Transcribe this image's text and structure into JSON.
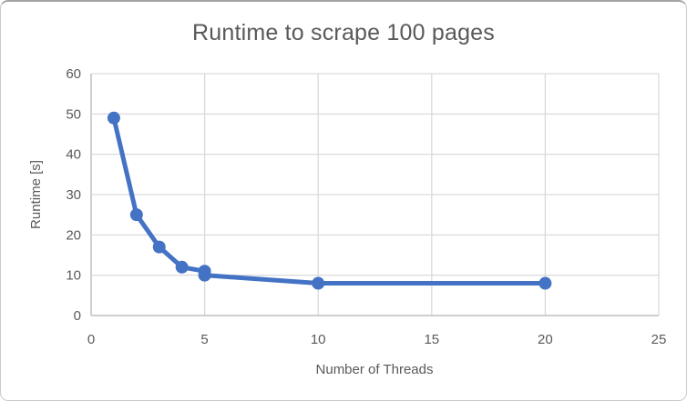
{
  "window": {
    "background": "#ffffff",
    "border_color": "#c9c9c9",
    "top_edge_color": "#a3a3a3"
  },
  "chart_data": {
    "type": "line",
    "title": "Runtime to scrape 100 pages",
    "xlabel": "Number of Threads",
    "ylabel": "Runtime [s]",
    "x": [
      1,
      2,
      3,
      4,
      5,
      5,
      10,
      20
    ],
    "y": [
      49,
      25,
      17,
      12,
      11,
      10,
      8,
      8
    ],
    "xlim": [
      0,
      25
    ],
    "ylim": [
      0,
      60
    ],
    "xticks": [
      0,
      5,
      10,
      15,
      20,
      25
    ],
    "yticks": [
      0,
      10,
      20,
      30,
      40,
      50,
      60
    ],
    "grid": true,
    "legend": "none",
    "series_name": "Runtime",
    "series_color": "#4472C4",
    "gridline_color": "#d9d9d9",
    "axis_line_color": "#bfbfbf",
    "text_color": "#595959",
    "marker": "circle",
    "marker_radius": 7,
    "line_width": 5
  }
}
